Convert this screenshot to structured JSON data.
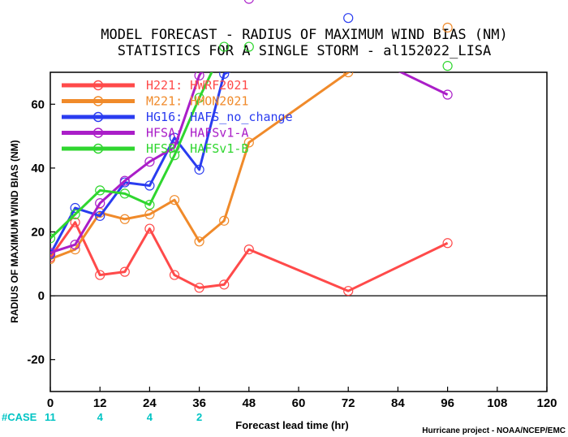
{
  "chart_data": {
    "type": "line",
    "title": "MODEL FORECAST - RADIUS OF MAXIMUM WIND BIAS (NM)",
    "subtitle": "STATISTICS FOR A SINGLE STORM - al152022_LISA",
    "xlabel": "Forecast lead time (hr)",
    "ylabel": "RADIUS OF MAXIMUM WIND BIAS (NM)",
    "credit": "Hurricane project - NOAA/NCEP/EMC",
    "xlim": [
      0,
      120
    ],
    "ylim": [
      -30,
      70
    ],
    "xticks": [
      "0",
      "12",
      "24",
      "36",
      "48",
      "60",
      "72",
      "84",
      "96",
      "108",
      "120"
    ],
    "yticks": [
      "-20",
      "0",
      "20",
      "40",
      "60"
    ],
    "case_label": "#CASE",
    "case_counts": [
      {
        "x": 0,
        "label": "11"
      },
      {
        "x": 12,
        "label": "4"
      },
      {
        "x": 24,
        "label": "4"
      },
      {
        "x": 36,
        "label": "2"
      }
    ],
    "legend_placement": "top-left",
    "series": [
      {
        "name": "H221: HWRF2021",
        "color": "#ff4a4a",
        "points": [
          [
            0,
            12
          ],
          [
            6,
            23
          ],
          [
            12,
            6.5
          ],
          [
            18,
            7.5
          ],
          [
            24,
            21
          ],
          [
            30,
            6.5
          ],
          [
            36,
            2.5
          ],
          [
            42,
            3.5
          ],
          [
            48,
            14.5
          ],
          [
            72,
            1.5
          ],
          [
            96,
            16.5
          ]
        ]
      },
      {
        "name": "M221: HMON2021",
        "color": "#f08a2a",
        "points": [
          [
            0,
            11.5
          ],
          [
            6,
            14.5
          ],
          [
            12,
            26
          ],
          [
            18,
            24
          ],
          [
            24,
            25.5
          ],
          [
            30,
            30
          ],
          [
            36,
            17
          ],
          [
            42,
            23.5
          ],
          [
            48,
            48
          ],
          [
            72,
            70
          ],
          [
            96,
            84
          ]
        ]
      },
      {
        "name": "HG16: HAFS_no_change",
        "color": "#2a3cf0",
        "points": [
          [
            0,
            13
          ],
          [
            6,
            27.5
          ],
          [
            12,
            25
          ],
          [
            18,
            35.5
          ],
          [
            24,
            34.5
          ],
          [
            30,
            49.5
          ],
          [
            36,
            39.5
          ],
          [
            42,
            69.5
          ],
          [
            72,
            87
          ]
        ]
      },
      {
        "name": "HFSA: HAFSv1-A",
        "color": "#aa1ec8",
        "points": [
          [
            0,
            13.5
          ],
          [
            6,
            16
          ],
          [
            12,
            29
          ],
          [
            18,
            36
          ],
          [
            24,
            42
          ],
          [
            30,
            46.5
          ],
          [
            36,
            69
          ],
          [
            48,
            93
          ],
          [
            96,
            63
          ]
        ]
      },
      {
        "name": "HFSB: HAFSv1-B",
        "color": "#2fd62f",
        "points": [
          [
            0,
            18
          ],
          [
            6,
            25.5
          ],
          [
            12,
            33
          ],
          [
            18,
            32
          ],
          [
            24,
            28.5
          ],
          [
            30,
            44
          ],
          [
            36,
            62
          ],
          [
            42,
            78
          ],
          [
            48,
            78
          ],
          [
            96,
            72
          ]
        ]
      }
    ]
  }
}
